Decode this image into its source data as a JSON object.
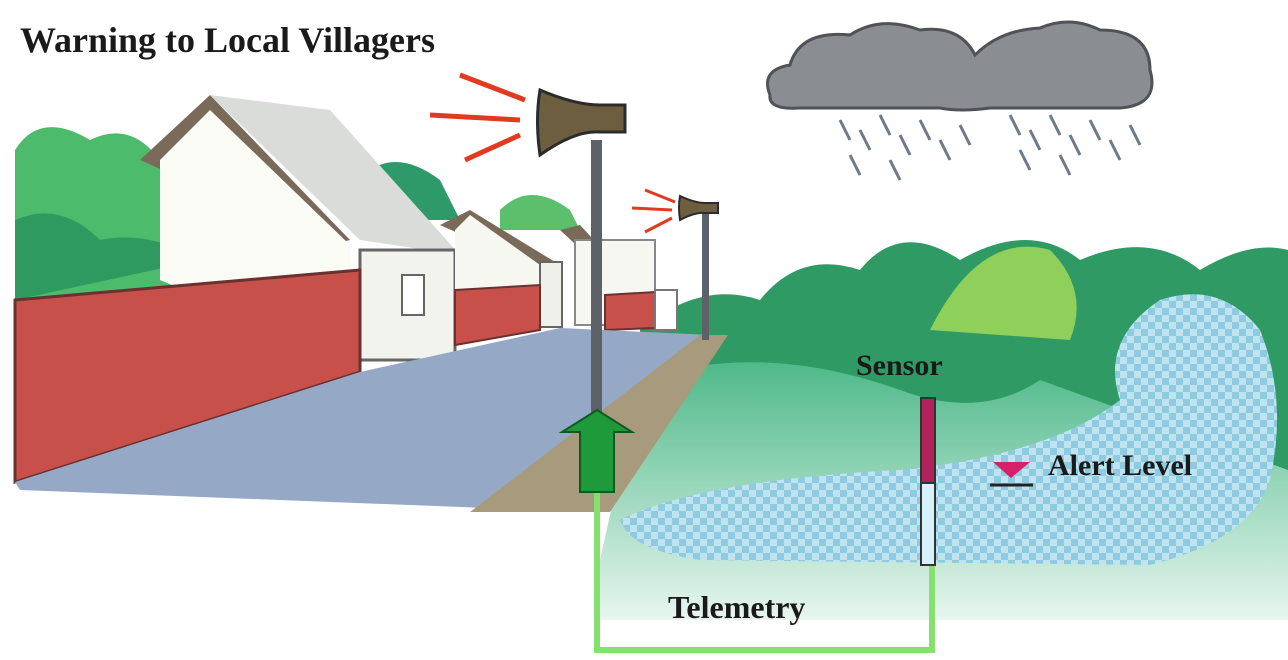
{
  "title": "Warning to Local Villagers",
  "labels": {
    "sensor": "Sensor",
    "alert_level": "Alert Level",
    "telemetry": "Telemetry"
  }
}
